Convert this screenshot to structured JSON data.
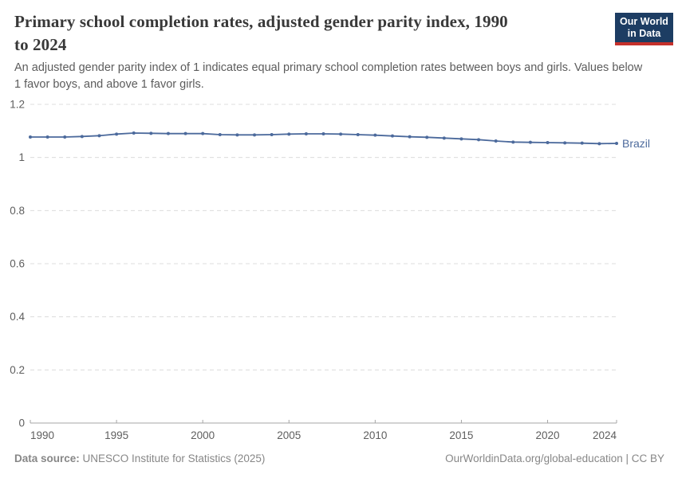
{
  "header": {
    "title": "Primary school completion rates, adjusted gender parity index, 1990 to 2024",
    "title_lines": [
      "Primary school completion rates, adjusted gender parity index, 1990",
      "to 2024"
    ],
    "subtitle": "An adjusted gender parity index of 1 indicates equal primary school completion rates between boys and girls. Values below 1 favor boys, and above 1 favor girls.",
    "logo": {
      "line1": "Our World",
      "line2": "in Data",
      "bg_color": "#1d3d63",
      "accent_color": "#c5302b"
    }
  },
  "chart_data": {
    "type": "line",
    "title": "Primary school completion rates, adjusted gender parity index, 1990 to 2024",
    "xlabel": "",
    "ylabel": "",
    "xlim": [
      1990,
      2024
    ],
    "ylim": [
      0,
      1.2
    ],
    "grid": "horizontal-dashed",
    "legend": "end-of-line-label",
    "x": [
      1990,
      1991,
      1992,
      1993,
      1994,
      1995,
      1996,
      1997,
      1998,
      1999,
      2000,
      2001,
      2002,
      2003,
      2004,
      2005,
      2006,
      2007,
      2008,
      2009,
      2010,
      2011,
      2012,
      2013,
      2014,
      2015,
      2016,
      2017,
      2018,
      2019,
      2020,
      2021,
      2022,
      2023,
      2024
    ],
    "series": [
      {
        "name": "Brazil",
        "color": "#4c6a9c",
        "values": [
          1.077,
          1.077,
          1.077,
          1.079,
          1.082,
          1.088,
          1.092,
          1.091,
          1.09,
          1.09,
          1.09,
          1.086,
          1.085,
          1.085,
          1.086,
          1.088,
          1.089,
          1.089,
          1.088,
          1.086,
          1.084,
          1.081,
          1.078,
          1.076,
          1.073,
          1.07,
          1.067,
          1.062,
          1.058,
          1.057,
          1.056,
          1.055,
          1.054,
          1.052,
          1.053
        ]
      }
    ],
    "xticks": [
      {
        "v": 1990,
        "label": "1990"
      },
      {
        "v": 1995,
        "label": "1995"
      },
      {
        "v": 2000,
        "label": "2000"
      },
      {
        "v": 2005,
        "label": "2005"
      },
      {
        "v": 2010,
        "label": "2010"
      },
      {
        "v": 2015,
        "label": "2015"
      },
      {
        "v": 2020,
        "label": "2020"
      },
      {
        "v": 2024,
        "label": "2024"
      }
    ],
    "yticks": [
      {
        "v": 0,
        "label": "0"
      },
      {
        "v": 0.2,
        "label": "0.2"
      },
      {
        "v": 0.4,
        "label": "0.4"
      },
      {
        "v": 0.6,
        "label": "0.6"
      },
      {
        "v": 0.8,
        "label": "0.8"
      },
      {
        "v": 1,
        "label": "1"
      },
      {
        "v": 1.2,
        "label": "1.2"
      }
    ]
  },
  "footer": {
    "source_label": "Data source:",
    "source_text": "UNESCO Institute for Statistics (2025)",
    "credit": "OurWorldinData.org/global-education | CC BY"
  }
}
